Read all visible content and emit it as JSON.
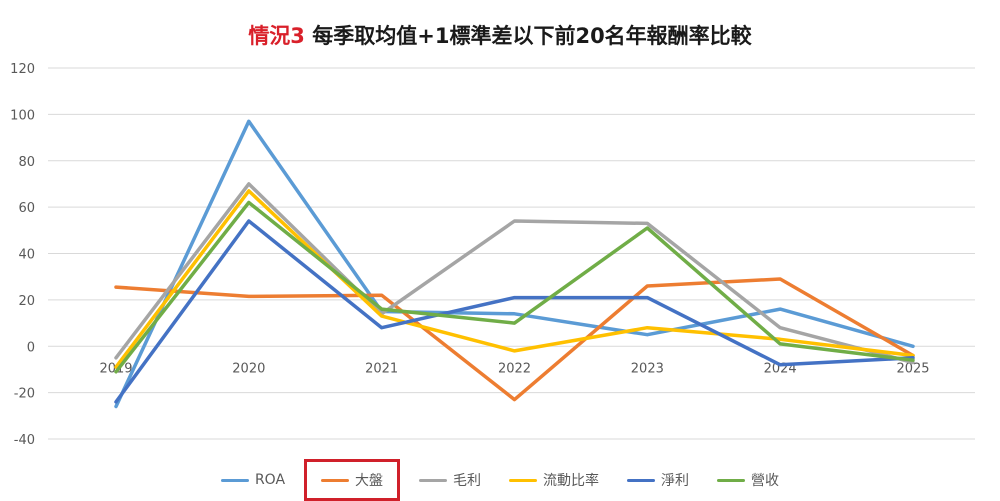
{
  "title": {
    "tag": "情況3",
    "text": "每季取均值+1標準差以下前20名年報酬率比較"
  },
  "chart_data": {
    "type": "line",
    "title": "情況3 每季取均值+1標準差以下前20名年報酬率比較",
    "xlabel": "",
    "ylabel": "",
    "x": [
      "2019",
      "2020",
      "2021",
      "2022",
      "2023",
      "2024",
      "2025"
    ],
    "ylim": [
      -40,
      120
    ],
    "yticks": [
      -40,
      -20,
      0,
      20,
      40,
      60,
      80,
      100,
      120
    ],
    "grid": true,
    "legend_position": "bottom",
    "highlighted_legend": "大盤",
    "series": [
      {
        "name": "ROA",
        "color": "#5b9bd5",
        "values": [
          -26,
          97,
          15,
          14,
          5,
          16,
          0
        ]
      },
      {
        "name": "大盤",
        "color": "#ed7d31",
        "values": [
          25.5,
          21.5,
          22,
          -23,
          26,
          29,
          -4
        ]
      },
      {
        "name": "毛利",
        "color": "#a5a5a5",
        "values": [
          -5,
          70,
          14,
          54,
          53,
          8,
          -7
        ]
      },
      {
        "name": "流動比率",
        "color": "#ffc000",
        "values": [
          -9,
          67,
          13,
          -2,
          8,
          3,
          -4
        ]
      },
      {
        "name": "淨利",
        "color": "#4472c4",
        "values": [
          -24,
          54,
          8,
          21,
          21,
          -8,
          -5
        ]
      },
      {
        "name": "營收",
        "color": "#70ad47",
        "values": [
          -11,
          62,
          16,
          10,
          51,
          1,
          -6
        ]
      }
    ]
  }
}
